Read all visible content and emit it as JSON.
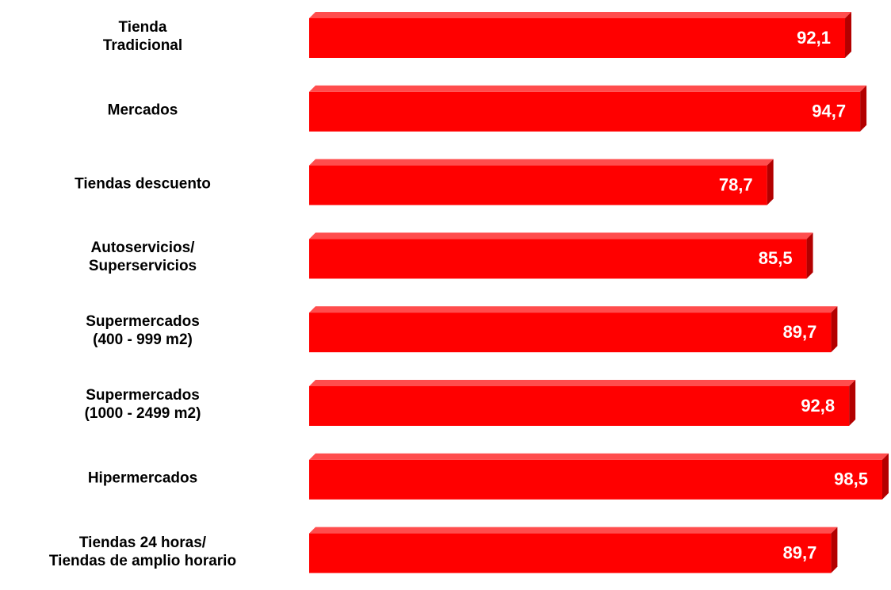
{
  "chart_data": {
    "type": "bar",
    "orientation": "horizontal",
    "categories": [
      "Tienda\nTradicional",
      "Mercados",
      "Tiendas descuento",
      "Autoservicios/\nSuperservicios",
      "Supermercados\n(400 - 999 m2)",
      "Supermercados\n(1000 - 2499 m2)",
      "Hipermercados",
      "Tiendas 24 horas/\nTiendas de amplio horario"
    ],
    "values": [
      92.1,
      94.7,
      78.7,
      85.5,
      89.7,
      92.8,
      98.5,
      89.7
    ],
    "value_labels": [
      "92,1",
      "94,7",
      "78,7",
      "85,5",
      "89,7",
      "92,8",
      "98,5",
      "89,7"
    ],
    "color": "#ff0000",
    "xlim": [
      0,
      100
    ]
  }
}
